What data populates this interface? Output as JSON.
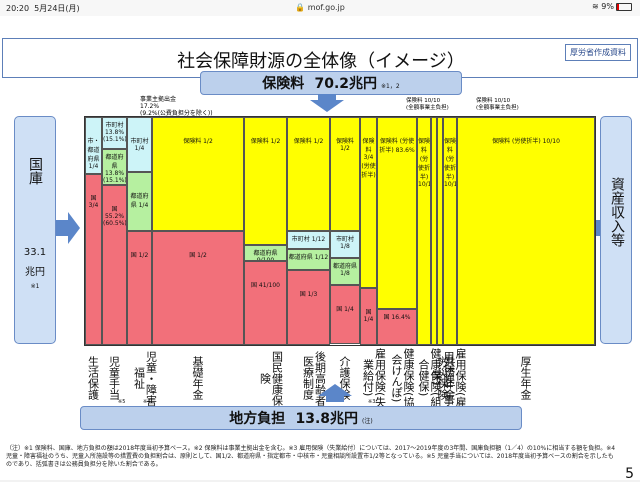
{
  "status_bar": {
    "time": "20:20",
    "date": "5月24日(月)",
    "url": "mof.go.jp",
    "battery": "9%"
  },
  "slide": {
    "title": "社会保障財源の全体像（イメージ）",
    "source": "厚労省作成資料",
    "premium_label": "保険料",
    "premium_value": "70.2兆円",
    "premium_note": "※1，2",
    "national_label": "国庫",
    "national_value": "33.1",
    "national_unit": "兆円",
    "national_note": "※1",
    "asset_label": "資産収入等",
    "local_label": "地方負担",
    "local_value": "13.8兆円",
    "local_note": "(注)",
    "top_note_1": "事業主拠出金",
    "top_note_2": "17.2%",
    "top_note_3": "(9.2%(公費負担分を除く))",
    "emp_note_a": "保険料 10/10",
    "emp_note_a2": "(全額事業主負担)",
    "emp_note_b": "保険料 10/10",
    "emp_note_b2": "(全額事業主負担)",
    "page_number": "5",
    "footnote": "（注）※1 保険料、国庫、地方負担の額は2018年度当初予算ベース。※2 保険料は事業主拠出金を含む。※3 雇用保険（失業給付）については、2017～2019年度の3年間、国庫負担額（1／4）の10%に相当する額を負担。※4 児童・障害福祉のうち、児童入所施設等の措置費の負担割合は、原則として、国1/2、都道府県・指定都市・中核市・児童相談所設置市1/2等となっている。※5 児童手当については、2018年度当初予算ベースの割合を示したものであり、括弧書きは公務員負担分を除いた割合である。"
  },
  "columns": [
    {
      "id": "seikatsu",
      "label": "生活保護",
      "note": "",
      "cells": [
        {
          "text": "市・都道府県 1/4",
          "color": "cyan"
        },
        {
          "text": "国 3/4",
          "color": "red"
        }
      ]
    },
    {
      "id": "jidou",
      "label": "児童手当",
      "note": "※5",
      "cells": [
        {
          "text": "市町村 13.8% (15.1%)",
          "color": "cyan"
        },
        {
          "text": "都道府県 13.8% (15.1%)",
          "color": "green"
        },
        {
          "text": "国 55.2% (60.5%)",
          "color": "red"
        }
      ]
    },
    {
      "id": "fukushi",
      "label": "児童・障害福祉",
      "note": "※4",
      "cells": [
        {
          "text": "市町村 1/4",
          "color": "cyan"
        },
        {
          "text": "都道府県 1/4",
          "color": "green"
        },
        {
          "text": "国 1/2",
          "color": "red"
        }
      ]
    },
    {
      "id": "kiso",
      "label": "基礎年金",
      "note": "",
      "cells": [
        {
          "text": "保険料 1/2",
          "color": "yellow"
        },
        {
          "text": "国 1/2",
          "color": "red"
        }
      ]
    },
    {
      "id": "kokuho",
      "label": "国民健康保険",
      "note": "",
      "cells": [
        {
          "text": "保険料 1/2",
          "color": "yellow"
        },
        {
          "text": "都道府県 9/100",
          "color": "green"
        },
        {
          "text": "国 41/100",
          "color": "red"
        }
      ]
    },
    {
      "id": "kouki",
      "label": "後期高齢者医療制度",
      "note": "",
      "cells": [
        {
          "text": "保険料 1/2",
          "color": "yellow"
        },
        {
          "text": "市町村 1/12",
          "color": "cyan"
        },
        {
          "text": "都道府県 1/12",
          "color": "green"
        },
        {
          "text": "国 1/3",
          "color": "red"
        }
      ]
    },
    {
      "id": "kaigo",
      "label": "介護保険",
      "note": "",
      "cells": [
        {
          "text": "保険料 1/2",
          "color": "yellow"
        },
        {
          "text": "市町村 1/8",
          "color": "cyan"
        },
        {
          "text": "都道府県 1/8",
          "color": "green"
        },
        {
          "text": "国 1/4",
          "color": "red"
        }
      ]
    },
    {
      "id": "koyou",
      "label": "雇用保険(失業給付)",
      "note": "※3",
      "cells": [
        {
          "text": "保険料 3/4 (労使折半)",
          "color": "yellow"
        },
        {
          "text": "国 1/4",
          "color": "red"
        }
      ]
    },
    {
      "id": "kyoukai",
      "label": "健康保険(協会けんぽ)",
      "note": "",
      "cells": [
        {
          "text": "保険料 (労使折半) 83.6%",
          "color": "yellow"
        },
        {
          "text": "国 16.4%",
          "color": "red"
        }
      ]
    },
    {
      "id": "kumiai",
      "label": "健康保険(組合健保)",
      "note": "",
      "cells": [
        {
          "text": "保険料 (労使折半) 10/10",
          "color": "yellow"
        }
      ]
    },
    {
      "id": "koyou2",
      "label": "雇用保険(雇用保険二事業)",
      "note": "",
      "cells": [
        {
          "text": "",
          "color": "yellow"
        }
      ]
    },
    {
      "id": "rousai",
      "label": "労災保険",
      "note": "",
      "cells": [
        {
          "text": "",
          "color": "yellow"
        }
      ]
    },
    {
      "id": "kyousai",
      "label": "共済年金",
      "note": "",
      "cells": [
        {
          "text": "保険料 (労使折半) 10/10",
          "color": "yellow"
        }
      ]
    },
    {
      "id": "kousei",
      "label": "厚生年金",
      "note": "",
      "cells": [
        {
          "text": "保険料 (労使折半) 10/10",
          "color": "yellow"
        }
      ]
    }
  ]
}
